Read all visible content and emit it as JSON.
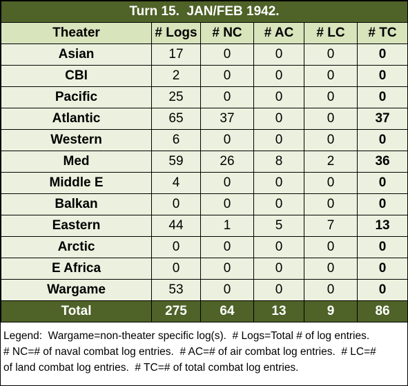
{
  "title": "Turn 15.  JAN/FEB 1942.",
  "table": {
    "header": [
      "Theater",
      "# Logs",
      "# NC",
      "# AC",
      "# LC",
      "# TC"
    ],
    "rows": [
      [
        "Asian",
        17,
        0,
        0,
        0,
        0
      ],
      [
        "CBI",
        2,
        0,
        0,
        0,
        0
      ],
      [
        "Pacific",
        25,
        0,
        0,
        0,
        0
      ],
      [
        "Atlantic",
        65,
        37,
        0,
        0,
        37
      ],
      [
        "Western",
        6,
        0,
        0,
        0,
        0
      ],
      [
        "Med",
        59,
        26,
        8,
        2,
        36
      ],
      [
        "Middle E",
        4,
        0,
        0,
        0,
        0
      ],
      [
        "Balkan",
        0,
        0,
        0,
        0,
        0
      ],
      [
        "Eastern",
        44,
        1,
        5,
        7,
        13
      ],
      [
        "Arctic",
        0,
        0,
        0,
        0,
        0
      ],
      [
        "E Africa",
        0,
        0,
        0,
        0,
        0
      ],
      [
        "Wargame",
        53,
        0,
        0,
        0,
        0
      ]
    ],
    "total": [
      "Total",
      275,
      64,
      13,
      9,
      86
    ]
  },
  "legend": [
    "Legend:  Wargame=non-theater specific log(s).  # Logs=Total # of log entries.",
    "# NC=# of naval combat log entries.  # AC=# of air combat log entries.  # LC=#",
    "of land combat log entries.  # TC=# of total combat log entries."
  ]
}
